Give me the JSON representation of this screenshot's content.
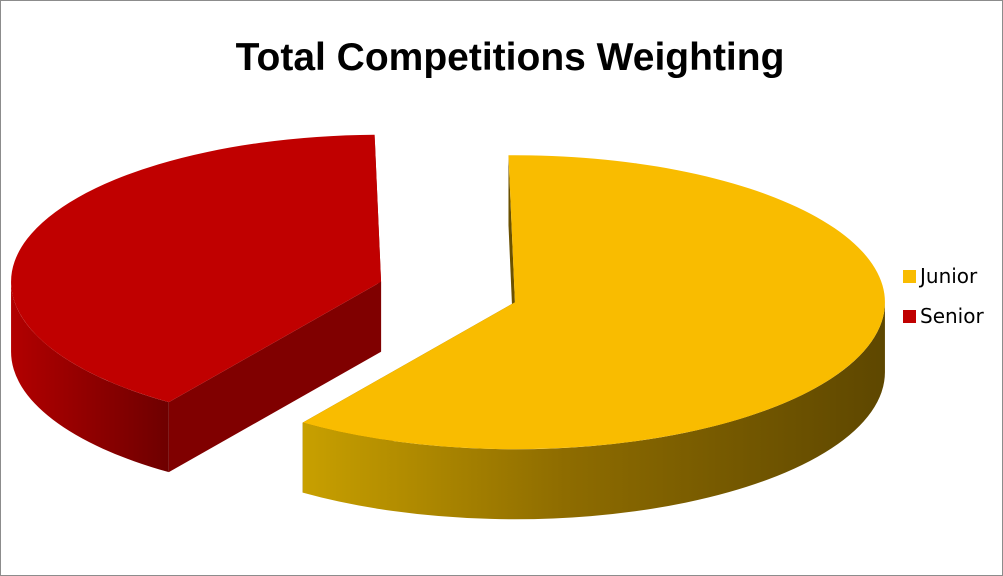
{
  "chart_data": {
    "type": "pie",
    "title": "Total Competitions Weighting",
    "three_d": true,
    "exploded": true,
    "legend_position": "right",
    "categories": [
      "Junior",
      "Senior"
    ],
    "values": [
      60,
      40
    ],
    "colors": [
      "#F9BC00",
      "#C00000"
    ]
  }
}
